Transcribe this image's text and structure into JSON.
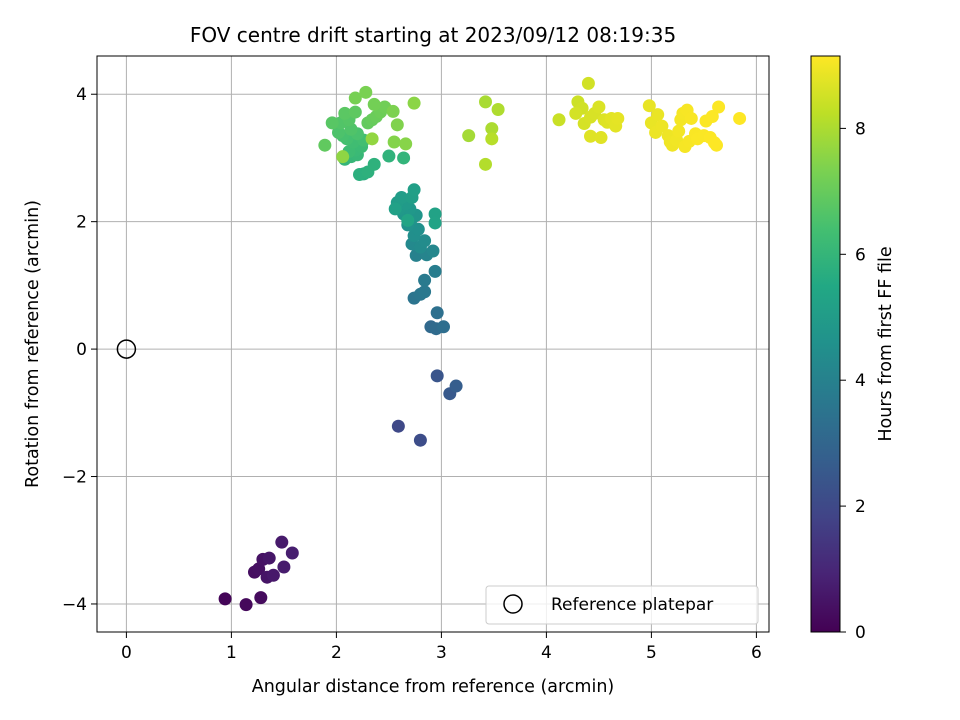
{
  "chart_data": {
    "type": "scatter",
    "title": "FOV centre drift starting at 2023/09/12 08:19:35",
    "xlabel": "Angular distance from reference (arcmin)",
    "ylabel": "Rotation from reference (arcmin)",
    "xlim": [
      -0.28,
      6.12
    ],
    "ylim": [
      -4.44,
      4.6
    ],
    "xticks": [
      0,
      1,
      2,
      3,
      4,
      5,
      6
    ],
    "yticks": [
      -4,
      -2,
      0,
      2,
      4
    ],
    "grid": true,
    "colormap": "viridis",
    "colorbar": {
      "label": "Hours from first FF file",
      "min": 0,
      "max": 9.15,
      "ticks": [
        0,
        2,
        4,
        6,
        8
      ]
    },
    "legend": {
      "position": "bottom-right",
      "entries": [
        "Reference platepar"
      ]
    },
    "reference_point": {
      "x": 0,
      "y": 0
    },
    "series": [
      {
        "points": [
          {
            "x": 0.94,
            "y": -3.92,
            "t": 0.1
          },
          {
            "x": 1.14,
            "y": -4.01,
            "t": 0.2
          },
          {
            "x": 1.28,
            "y": -3.9,
            "t": 0.25
          },
          {
            "x": 1.22,
            "y": -3.5,
            "t": 0.35
          },
          {
            "x": 1.26,
            "y": -3.45,
            "t": 0.4
          },
          {
            "x": 1.3,
            "y": -3.3,
            "t": 0.45
          },
          {
            "x": 1.34,
            "y": -3.58,
            "t": 0.5
          },
          {
            "x": 1.36,
            "y": -3.28,
            "t": 0.55
          },
          {
            "x": 1.4,
            "y": -3.55,
            "t": 0.6
          },
          {
            "x": 1.48,
            "y": -3.03,
            "t": 0.65
          },
          {
            "x": 1.5,
            "y": -3.42,
            "t": 0.7
          },
          {
            "x": 1.58,
            "y": -3.2,
            "t": 0.75
          },
          {
            "x": 2.59,
            "y": -1.21,
            "t": 2.0
          },
          {
            "x": 2.8,
            "y": -1.43,
            "t": 2.15
          },
          {
            "x": 2.96,
            "y": -0.42,
            "t": 2.4
          },
          {
            "x": 3.08,
            "y": -0.7,
            "t": 2.55
          },
          {
            "x": 3.14,
            "y": -0.58,
            "t": 2.7
          },
          {
            "x": 2.9,
            "y": 0.35,
            "t": 3.1
          },
          {
            "x": 2.95,
            "y": 0.32,
            "t": 3.2
          },
          {
            "x": 3.02,
            "y": 0.35,
            "t": 3.3
          },
          {
            "x": 2.96,
            "y": 0.57,
            "t": 3.35
          },
          {
            "x": 2.74,
            "y": 0.8,
            "t": 3.5
          },
          {
            "x": 2.8,
            "y": 0.86,
            "t": 3.6
          },
          {
            "x": 2.84,
            "y": 0.9,
            "t": 3.65
          },
          {
            "x": 2.84,
            "y": 1.08,
            "t": 3.75
          },
          {
            "x": 2.94,
            "y": 1.22,
            "t": 3.85
          },
          {
            "x": 2.76,
            "y": 1.47,
            "t": 4.0
          },
          {
            "x": 2.86,
            "y": 1.48,
            "t": 4.1
          },
          {
            "x": 2.92,
            "y": 1.54,
            "t": 4.2
          },
          {
            "x": 2.72,
            "y": 1.65,
            "t": 4.3
          },
          {
            "x": 2.8,
            "y": 1.6,
            "t": 4.35
          },
          {
            "x": 2.84,
            "y": 1.7,
            "t": 4.4
          },
          {
            "x": 2.74,
            "y": 1.78,
            "t": 4.5
          },
          {
            "x": 2.78,
            "y": 1.88,
            "t": 4.55
          },
          {
            "x": 2.68,
            "y": 1.95,
            "t": 4.6
          },
          {
            "x": 2.72,
            "y": 2.05,
            "t": 4.7
          },
          {
            "x": 2.76,
            "y": 2.1,
            "t": 4.75
          },
          {
            "x": 2.64,
            "y": 2.12,
            "t": 4.8
          },
          {
            "x": 2.7,
            "y": 2.2,
            "t": 4.85
          },
          {
            "x": 2.6,
            "y": 2.2,
            "t": 4.9
          },
          {
            "x": 2.66,
            "y": 2.28,
            "t": 4.95
          },
          {
            "x": 2.58,
            "y": 2.3,
            "t": 5.0
          },
          {
            "x": 2.62,
            "y": 2.38,
            "t": 5.05
          },
          {
            "x": 2.72,
            "y": 2.38,
            "t": 5.1
          },
          {
            "x": 2.74,
            "y": 2.5,
            "t": 5.15
          },
          {
            "x": 2.56,
            "y": 2.2,
            "t": 5.2
          },
          {
            "x": 2.94,
            "y": 2.12,
            "t": 5.25
          },
          {
            "x": 2.94,
            "y": 1.98,
            "t": 5.3
          },
          {
            "x": 2.68,
            "y": 2.02,
            "t": 5.35
          },
          {
            "x": 2.26,
            "y": 2.75,
            "t": 5.7
          },
          {
            "x": 2.22,
            "y": 2.74,
            "t": 5.75
          },
          {
            "x": 2.3,
            "y": 2.78,
            "t": 5.8
          },
          {
            "x": 2.36,
            "y": 2.9,
            "t": 5.85
          },
          {
            "x": 2.5,
            "y": 3.03,
            "t": 5.9
          },
          {
            "x": 2.64,
            "y": 3.0,
            "t": 5.95
          },
          {
            "x": 2.08,
            "y": 2.98,
            "t": 6.0
          },
          {
            "x": 2.14,
            "y": 3.02,
            "t": 6.05
          },
          {
            "x": 2.2,
            "y": 3.05,
            "t": 6.1
          },
          {
            "x": 2.18,
            "y": 3.12,
            "t": 6.15
          },
          {
            "x": 2.24,
            "y": 3.18,
            "t": 6.2
          },
          {
            "x": 2.12,
            "y": 3.1,
            "t": 6.25
          },
          {
            "x": 2.16,
            "y": 3.25,
            "t": 6.3
          },
          {
            "x": 2.26,
            "y": 3.28,
            "t": 6.35
          },
          {
            "x": 2.1,
            "y": 3.3,
            "t": 6.4
          },
          {
            "x": 2.06,
            "y": 3.35,
            "t": 6.45
          },
          {
            "x": 2.2,
            "y": 3.38,
            "t": 6.5
          },
          {
            "x": 2.02,
            "y": 3.4,
            "t": 6.55
          },
          {
            "x": 2.14,
            "y": 3.45,
            "t": 6.6
          },
          {
            "x": 2.04,
            "y": 3.55,
            "t": 6.65
          },
          {
            "x": 2.12,
            "y": 3.6,
            "t": 6.7
          },
          {
            "x": 1.96,
            "y": 3.55,
            "t": 6.75
          },
          {
            "x": 2.08,
            "y": 3.7,
            "t": 6.8
          },
          {
            "x": 2.18,
            "y": 3.72,
            "t": 6.85
          },
          {
            "x": 1.89,
            "y": 3.2,
            "t": 6.9
          },
          {
            "x": 2.3,
            "y": 3.55,
            "t": 6.95
          },
          {
            "x": 2.34,
            "y": 3.6,
            "t": 7.0
          },
          {
            "x": 2.38,
            "y": 3.65,
            "t": 7.05
          },
          {
            "x": 2.42,
            "y": 3.72,
            "t": 7.1
          },
          {
            "x": 2.46,
            "y": 3.8,
            "t": 7.15
          },
          {
            "x": 2.36,
            "y": 3.84,
            "t": 7.2
          },
          {
            "x": 2.18,
            "y": 3.94,
            "t": 7.25
          },
          {
            "x": 2.28,
            "y": 4.03,
            "t": 7.3
          },
          {
            "x": 2.54,
            "y": 3.73,
            "t": 7.35
          },
          {
            "x": 2.58,
            "y": 3.52,
            "t": 7.4
          },
          {
            "x": 2.55,
            "y": 3.25,
            "t": 7.45
          },
          {
            "x": 2.66,
            "y": 3.22,
            "t": 7.5
          },
          {
            "x": 2.74,
            "y": 3.86,
            "t": 7.55
          },
          {
            "x": 2.06,
            "y": 3.02,
            "t": 7.6
          },
          {
            "x": 2.34,
            "y": 3.3,
            "t": 7.65
          },
          {
            "x": 3.26,
            "y": 3.35,
            "t": 7.9
          },
          {
            "x": 3.42,
            "y": 3.88,
            "t": 7.95
          },
          {
            "x": 3.48,
            "y": 3.46,
            "t": 8.0
          },
          {
            "x": 3.54,
            "y": 3.76,
            "t": 8.05
          },
          {
            "x": 3.42,
            "y": 2.9,
            "t": 8.1
          },
          {
            "x": 3.48,
            "y": 3.3,
            "t": 8.15
          },
          {
            "x": 4.12,
            "y": 3.6,
            "t": 8.4
          },
          {
            "x": 4.3,
            "y": 3.88,
            "t": 8.45
          },
          {
            "x": 4.34,
            "y": 3.78,
            "t": 8.5
          },
          {
            "x": 4.4,
            "y": 4.17,
            "t": 8.52
          },
          {
            "x": 4.28,
            "y": 3.7,
            "t": 8.55
          },
          {
            "x": 4.36,
            "y": 3.54,
            "t": 8.58
          },
          {
            "x": 4.42,
            "y": 3.64,
            "t": 8.6
          },
          {
            "x": 4.46,
            "y": 3.7,
            "t": 8.62
          },
          {
            "x": 4.5,
            "y": 3.8,
            "t": 8.65
          },
          {
            "x": 4.55,
            "y": 3.6,
            "t": 8.68
          },
          {
            "x": 4.58,
            "y": 3.56,
            "t": 8.7
          },
          {
            "x": 4.42,
            "y": 3.34,
            "t": 8.72
          },
          {
            "x": 4.52,
            "y": 3.32,
            "t": 8.74
          },
          {
            "x": 4.62,
            "y": 3.62,
            "t": 8.76
          },
          {
            "x": 4.66,
            "y": 3.5,
            "t": 8.78
          },
          {
            "x": 4.68,
            "y": 3.62,
            "t": 8.8
          },
          {
            "x": 4.98,
            "y": 3.82,
            "t": 8.85
          },
          {
            "x": 5.0,
            "y": 3.55,
            "t": 8.87
          },
          {
            "x": 5.06,
            "y": 3.68,
            "t": 8.88
          },
          {
            "x": 5.04,
            "y": 3.4,
            "t": 8.9
          },
          {
            "x": 5.1,
            "y": 3.5,
            "t": 8.92
          },
          {
            "x": 5.16,
            "y": 3.35,
            "t": 8.93
          },
          {
            "x": 5.18,
            "y": 3.25,
            "t": 8.95
          },
          {
            "x": 5.2,
            "y": 3.2,
            "t": 8.97
          },
          {
            "x": 5.24,
            "y": 3.28,
            "t": 8.98
          },
          {
            "x": 5.26,
            "y": 3.42,
            "t": 9.0
          },
          {
            "x": 5.28,
            "y": 3.6,
            "t": 9.02
          },
          {
            "x": 5.3,
            "y": 3.7,
            "t": 9.03
          },
          {
            "x": 5.32,
            "y": 3.18,
            "t": 9.05
          },
          {
            "x": 5.34,
            "y": 3.75,
            "t": 9.06
          },
          {
            "x": 5.36,
            "y": 3.26,
            "t": 9.07
          },
          {
            "x": 5.38,
            "y": 3.62,
            "t": 9.08
          },
          {
            "x": 5.42,
            "y": 3.38,
            "t": 9.09
          },
          {
            "x": 5.44,
            "y": 3.3,
            "t": 9.1
          },
          {
            "x": 5.5,
            "y": 3.35,
            "t": 9.11
          },
          {
            "x": 5.52,
            "y": 3.58,
            "t": 9.12
          },
          {
            "x": 5.56,
            "y": 3.32,
            "t": 9.13
          },
          {
            "x": 5.58,
            "y": 3.65,
            "t": 9.13
          },
          {
            "x": 5.62,
            "y": 3.2,
            "t": 9.14
          },
          {
            "x": 5.64,
            "y": 3.8,
            "t": 9.14
          },
          {
            "x": 5.6,
            "y": 3.24,
            "t": 9.15
          },
          {
            "x": 5.84,
            "y": 3.62,
            "t": 9.15
          }
        ]
      }
    ]
  }
}
